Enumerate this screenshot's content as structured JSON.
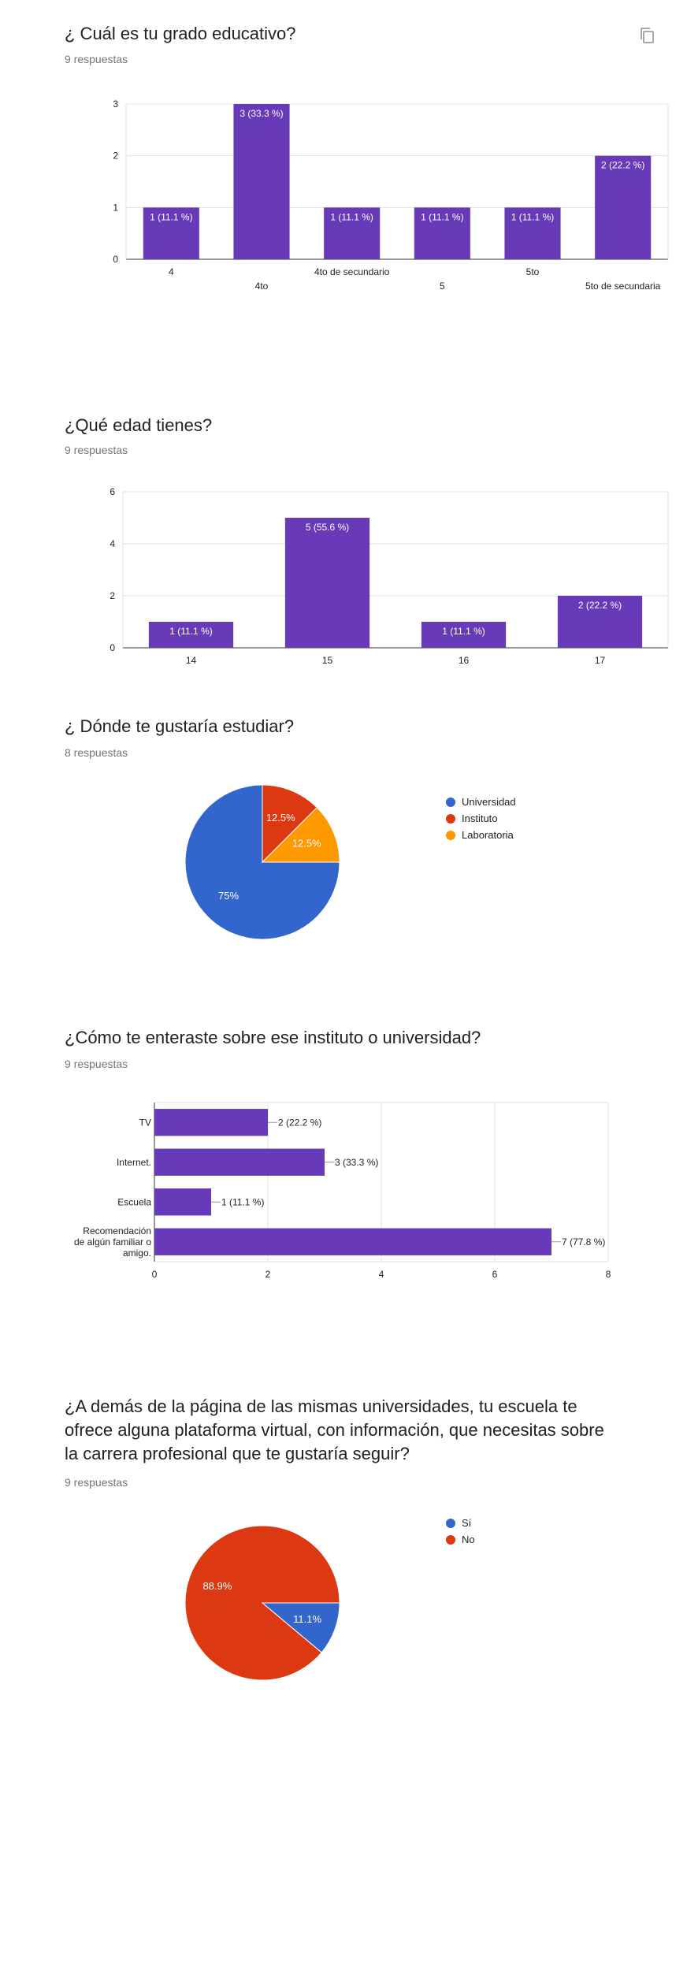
{
  "colors": {
    "purple": "#673ab7",
    "blue": "#3366cc",
    "red": "#dc3912",
    "orange": "#ff9900",
    "grid": "#e0e0e0",
    "axis": "#333333"
  },
  "q1": {
    "title": "¿ Cuál es tu grado educativo?",
    "subtitle": "9 respuestas",
    "copy_icon": "copy-icon"
  },
  "q2": {
    "title": "¿Qué edad tienes?",
    "subtitle": "9 respuestas"
  },
  "q3": {
    "title": "¿ Dónde te gustaría estudiar?",
    "subtitle": "8 respuestas"
  },
  "q4": {
    "title": "¿Cómo te enteraste sobre ese instituto o universidad?",
    "subtitle": "9 respuestas"
  },
  "q5": {
    "title_lines": [
      "¿A demás de la página de las mismas universidades, tu escuela te",
      "ofrece alguna plataforma virtual, con información, que necesitas sobre",
      "la carrera profesional que te gustaría seguir?"
    ],
    "subtitle": "9 respuestas"
  },
  "chart_data": [
    {
      "type": "bar",
      "categories": [
        "4",
        "4to",
        "4to de secundario",
        "5",
        "5to",
        "5to de secundaria"
      ],
      "values": [
        1,
        3,
        1,
        1,
        1,
        2
      ],
      "labels": [
        "1 (11.1 %)",
        "3 (33.3 %)",
        "1 (11.1 %)",
        "1 (11.1 %)",
        "1 (11.1 %)",
        "2 (22.2 %)"
      ],
      "yticks": [
        "0",
        "1",
        "2",
        "3"
      ],
      "ylim": [
        0,
        3
      ]
    },
    {
      "type": "bar",
      "categories": [
        "14",
        "15",
        "16",
        "17"
      ],
      "values": [
        1,
        5,
        1,
        2
      ],
      "labels": [
        "1 (11.1 %)",
        "5 (55.6 %)",
        "1 (11.1 %)",
        "2 (22.2 %)"
      ],
      "yticks": [
        "0",
        "2",
        "4",
        "6"
      ],
      "ylim": [
        0,
        6
      ]
    },
    {
      "type": "pie",
      "categories": [
        "Universidad",
        "Instituto",
        "Laboratoria"
      ],
      "values": [
        75,
        12.5,
        12.5
      ],
      "labels": [
        "75%",
        "12.5%",
        "12.5%"
      ],
      "legend": "right"
    },
    {
      "type": "bar",
      "orientation": "horizontal",
      "categories": [
        [
          "TV"
        ],
        [
          "Internet."
        ],
        [
          "Escuela"
        ],
        [
          "Recomendación",
          "de algún familiar o",
          "amigo."
        ]
      ],
      "values": [
        2,
        3,
        1,
        7
      ],
      "labels": [
        "2 (22.2 %)",
        "3 (33.3 %)",
        "1 (11.1 %)",
        "7 (77.8 %)"
      ],
      "xticks": [
        "0",
        "2",
        "4",
        "6",
        "8"
      ],
      "xlim": [
        0,
        8
      ]
    },
    {
      "type": "pie",
      "categories": [
        "Sí",
        "No"
      ],
      "values": [
        11.1,
        88.9
      ],
      "labels": [
        "11.1%",
        "88.9%"
      ],
      "legend": "right"
    }
  ]
}
